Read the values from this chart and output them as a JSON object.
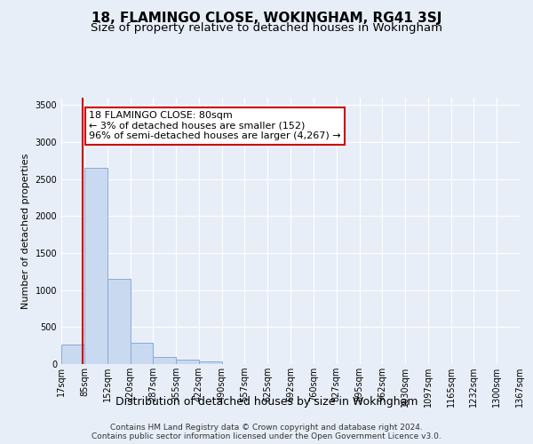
{
  "title": "18, FLAMINGO CLOSE, WOKINGHAM, RG41 3SJ",
  "subtitle": "Size of property relative to detached houses in Wokingham",
  "xlabel": "Distribution of detached houses by size in Wokingham",
  "ylabel": "Number of detached properties",
  "footnote1": "Contains HM Land Registry data © Crown copyright and database right 2024.",
  "footnote2": "Contains public sector information licensed under the Open Government Licence v3.0.",
  "bar_color": "#c9d9f0",
  "bar_edge_color": "#8aaad4",
  "annotation_box_color": "#cc0000",
  "property_line_color": "#cc0000",
  "annotation_text": "18 FLAMINGO CLOSE: 80sqm\n← 3% of detached houses are smaller (152)\n96% of semi-detached houses are larger (4,267) →",
  "property_value": 80,
  "bin_edges": [
    17,
    85,
    152,
    220,
    287,
    355,
    422,
    490,
    557,
    625,
    692,
    760,
    827,
    895,
    962,
    1030,
    1097,
    1165,
    1232,
    1300,
    1367
  ],
  "bar_heights": [
    270,
    2650,
    1150,
    290,
    100,
    60,
    35,
    0,
    0,
    0,
    0,
    0,
    0,
    0,
    0,
    0,
    0,
    0,
    0,
    0
  ],
  "ylim": [
    0,
    3600
  ],
  "yticks": [
    0,
    500,
    1000,
    1500,
    2000,
    2500,
    3000,
    3500
  ],
  "background_color": "#e8eef8",
  "plot_bg_color": "#e8eef8",
  "grid_color": "#ffffff",
  "title_fontsize": 11,
  "subtitle_fontsize": 9.5,
  "xlabel_fontsize": 9,
  "ylabel_fontsize": 8,
  "tick_fontsize": 7,
  "footnote_fontsize": 6.5,
  "annotation_fontsize": 8
}
